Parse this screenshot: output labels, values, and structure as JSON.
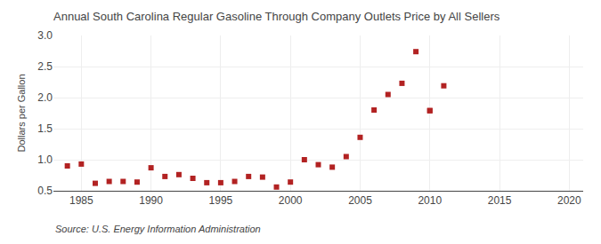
{
  "chart_data": {
    "type": "scatter",
    "title": "Annual South Carolina Regular Gasoline Through Company Outlets Price by All Sellers",
    "ylabel": "Dollars per Gallon",
    "annotations": [
      "Source: U.S. Energy Information Administration"
    ],
    "series": [
      {
        "x": [
          1984,
          1985,
          1986,
          1987,
          1988,
          1989,
          1990,
          1991,
          1992,
          1993,
          1994,
          1995,
          1996,
          1997,
          1998,
          1999,
          2000,
          2001,
          2002,
          2003,
          2004,
          2005,
          2006,
          2007,
          2008,
          2009,
          2010
        ],
        "values": [
          0.9,
          0.93,
          0.62,
          0.65,
          0.65,
          0.64,
          0.87,
          0.73,
          0.76,
          0.7,
          0.63,
          0.63,
          0.65,
          0.73,
          0.72,
          0.56,
          0.64,
          1.0,
          0.92,
          0.88,
          1.05,
          1.36,
          1.8,
          2.05,
          2.23,
          2.74,
          1.79
        ],
        "color": "#b22222",
        "marker": "square"
      },
      {
        "x": [
          2010,
          2011
        ],
        "values": [
          1.79,
          2.19
        ],
        "color": "#b22222",
        "marker": "square"
      }
    ],
    "xlim": [
      1983,
      2021
    ],
    "ylim": [
      0.5,
      3.0
    ],
    "xticks": [
      1985,
      1990,
      1995,
      2000,
      2005,
      2010,
      2015,
      2020
    ],
    "yticks": [
      0.5,
      {
        "value": 1.0,
        "label": "1.0"
      },
      1.5,
      {
        "value": 2.0,
        "label": "2.0"
      },
      2.5,
      {
        "value": 3.0,
        "label": "3.0"
      }
    ],
    "grid": true
  }
}
